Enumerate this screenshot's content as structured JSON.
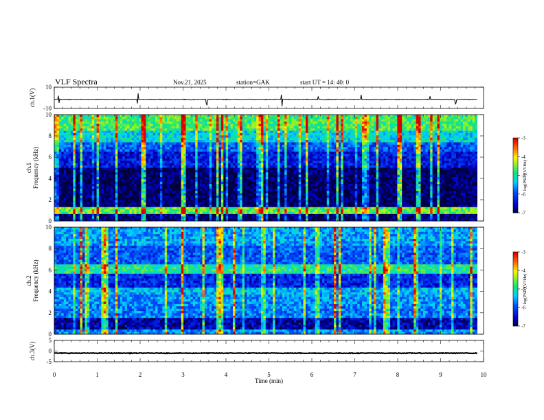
{
  "header": {
    "title": "VLF  Spectra",
    "date": "Nov.21, 2025",
    "station": "station=GAK",
    "start": "start  UT  =    14: 40: 0"
  },
  "chart_data": [
    {
      "type": "line",
      "name": "ch1-waveform",
      "ylabel": "ch.1(V)",
      "ylim": [
        -10,
        10
      ],
      "yticks": [
        "10",
        "-10"
      ],
      "baseline": -1.6,
      "noise": 0.4,
      "spike_times_min": [
        0.1,
        1.95,
        3.55,
        5.3,
        6.15,
        7.15,
        8.75,
        9.35
      ],
      "xlim": [
        0,
        10
      ]
    },
    {
      "type": "heatmap",
      "name": "ch1-spectrogram",
      "ylabel": "ch.1\nFrequency (kHz)",
      "ylim": [
        0,
        10
      ],
      "yticks": [
        "0",
        "2",
        "4",
        "6",
        "8",
        "10"
      ],
      "xlim": [
        0,
        10
      ],
      "z_label": "log(PSD)(V²/Hz)",
      "zlim": [
        -7,
        -3
      ],
      "zticks": [
        "-3",
        "-4",
        "-5",
        "-6",
        "-7"
      ],
      "bands": [
        {
          "from": 0.0,
          "to": 0.6,
          "level": -6.8
        },
        {
          "from": 0.6,
          "to": 1.2,
          "level": -4.6
        },
        {
          "from": 1.2,
          "to": 5.0,
          "level": -6.9
        },
        {
          "from": 5.0,
          "to": 6.5,
          "level": -6.3
        },
        {
          "from": 6.5,
          "to": 7.3,
          "level": -5.9
        },
        {
          "from": 7.3,
          "to": 8.5,
          "level": -5.2
        },
        {
          "from": 8.5,
          "to": 10.0,
          "level": -4.7
        }
      ]
    },
    {
      "type": "heatmap",
      "name": "ch2-spectrogram",
      "ylabel": "ch.2\nFrequency (kHz)",
      "ylim": [
        0,
        10
      ],
      "yticks": [
        "0",
        "2",
        "4",
        "6",
        "8",
        "10"
      ],
      "xlim": [
        0,
        10
      ],
      "z_label": "log(PSD)(V²/Hz)",
      "zlim": [
        -7,
        -3
      ],
      "zticks": [
        "-3",
        "-4",
        "-5",
        "-6",
        "-7"
      ],
      "bands": [
        {
          "from": 0.0,
          "to": 0.5,
          "level": -5.6
        },
        {
          "from": 0.5,
          "to": 1.5,
          "level": -6.6
        },
        {
          "from": 1.5,
          "to": 2.6,
          "level": -5.7
        },
        {
          "from": 2.6,
          "to": 3.6,
          "level": -5.6
        },
        {
          "from": 3.6,
          "to": 4.4,
          "level": -5.4
        },
        {
          "from": 4.4,
          "to": 5.6,
          "level": -6.2
        },
        {
          "from": 5.6,
          "to": 6.6,
          "level": -4.9
        },
        {
          "from": 6.6,
          "to": 8.2,
          "level": -5.9
        },
        {
          "from": 8.2,
          "to": 10.0,
          "level": -5.5
        }
      ]
    },
    {
      "type": "line",
      "name": "ch3-waveform",
      "ylabel": "ch.3(V)",
      "ylim": [
        -5,
        5
      ],
      "yticks": [
        "5",
        "0",
        "-5"
      ],
      "baseline": -1.0,
      "noise": 0.15,
      "xlim": [
        0,
        10
      ]
    }
  ],
  "xaxis": {
    "label": "Time  (min)",
    "ticks": [
      "0",
      "1",
      "2",
      "3",
      "4",
      "5",
      "6",
      "7",
      "8",
      "9",
      "10"
    ]
  },
  "colors": {
    "trace": "#000000",
    "axis": "#000000"
  }
}
